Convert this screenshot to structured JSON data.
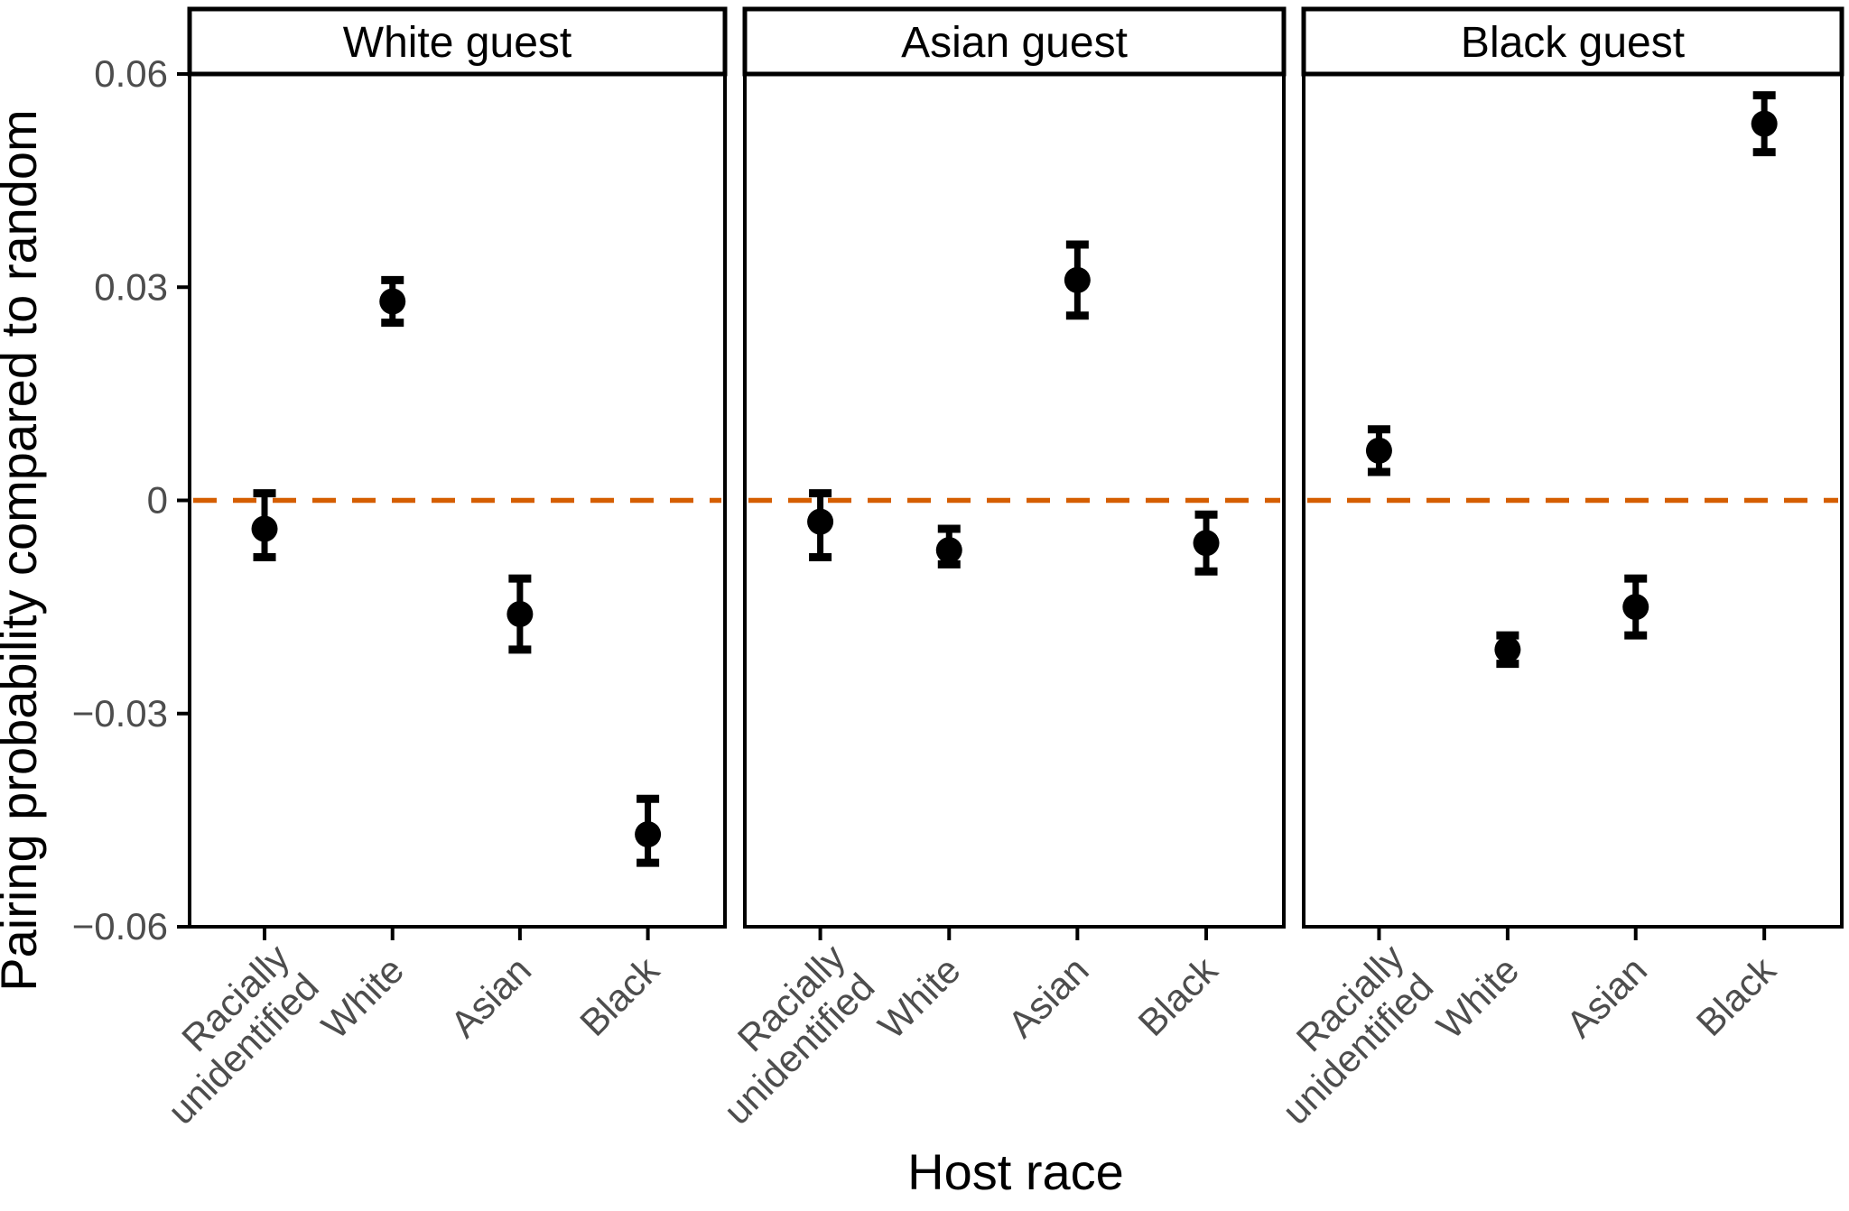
{
  "figure": {
    "background": "#ffffff"
  },
  "chart_data": {
    "type": "pointrange",
    "title": "",
    "xlabel": "Host race",
    "ylabel": "Pairing probability compared to random",
    "ylim": [
      -0.06,
      0.06
    ],
    "grid": false,
    "legend": "none",
    "y_ticks": [
      0.06,
      0.03,
      0,
      -0.03,
      -0.06
    ],
    "y_tick_labels": [
      "0.06",
      "0.03",
      "0",
      "−0.03",
      "−0.06"
    ],
    "categories": [
      "Racially\nunidentified",
      "White",
      "Asian",
      "Black"
    ],
    "zero_line": {
      "value": 0,
      "style": "dashed",
      "color": "#D55E00"
    },
    "facets": [
      {
        "label": "White guest",
        "points": [
          {
            "host": "Racially unidentified",
            "estimate": -0.004,
            "lower": -0.008,
            "upper": 0.001
          },
          {
            "host": "White",
            "estimate": 0.028,
            "lower": 0.025,
            "upper": 0.031
          },
          {
            "host": "Asian",
            "estimate": -0.016,
            "lower": -0.021,
            "upper": -0.011
          },
          {
            "host": "Black",
            "estimate": -0.047,
            "lower": -0.051,
            "upper": -0.042
          }
        ]
      },
      {
        "label": "Asian guest",
        "points": [
          {
            "host": "Racially unidentified",
            "estimate": -0.003,
            "lower": -0.008,
            "upper": 0.001
          },
          {
            "host": "White",
            "estimate": -0.007,
            "lower": -0.009,
            "upper": -0.004
          },
          {
            "host": "Asian",
            "estimate": 0.031,
            "lower": 0.026,
            "upper": 0.036
          },
          {
            "host": "Black",
            "estimate": -0.006,
            "lower": -0.01,
            "upper": -0.002
          }
        ]
      },
      {
        "label": "Black guest",
        "points": [
          {
            "host": "Racially unidentified",
            "estimate": 0.007,
            "lower": 0.004,
            "upper": 0.01
          },
          {
            "host": "White",
            "estimate": -0.021,
            "lower": -0.023,
            "upper": -0.019
          },
          {
            "host": "Asian",
            "estimate": -0.015,
            "lower": -0.019,
            "upper": -0.011
          },
          {
            "host": "Black",
            "estimate": 0.053,
            "lower": 0.049,
            "upper": 0.057
          }
        ]
      }
    ],
    "colors": {
      "point": "#000000",
      "error_bar": "#000000",
      "zero_line": "#D55E00",
      "axis_text": "#4d4d4d",
      "axis_title": "#000000",
      "panel_border": "#000000",
      "strip_background": "#ffffff",
      "panel_background": "#ffffff"
    }
  }
}
